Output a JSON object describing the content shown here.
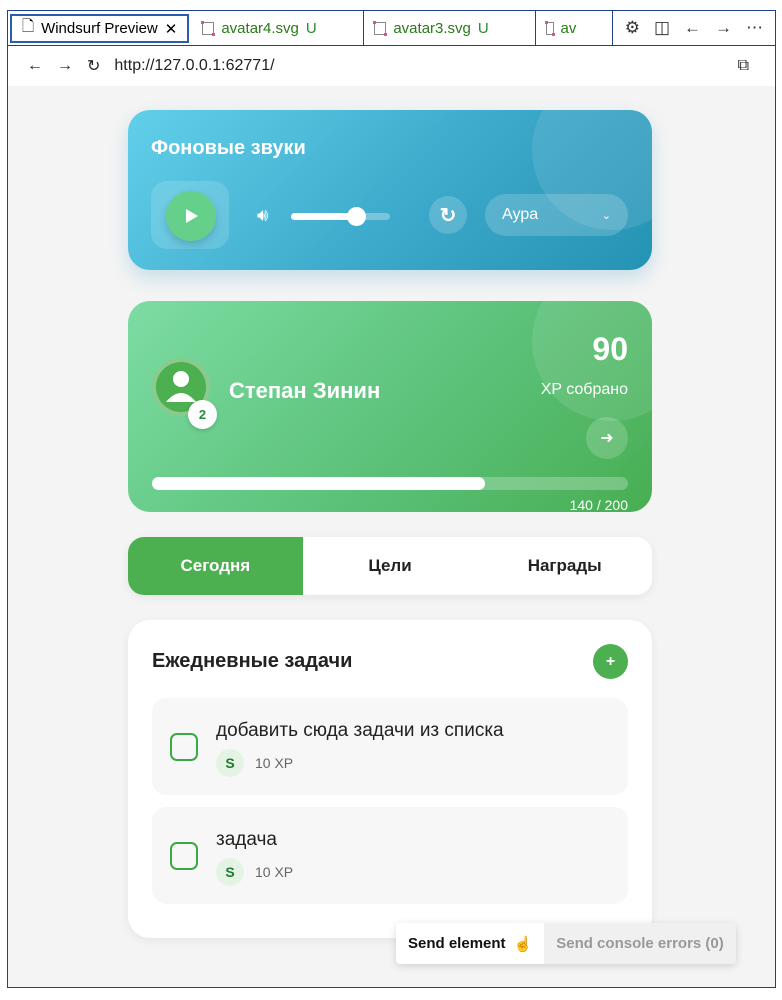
{
  "editor_tabs": [
    {
      "label": "Windsurf Preview",
      "active": true
    },
    {
      "label": "avatar4.svg",
      "status": "U"
    },
    {
      "label": "avatar3.svg",
      "status": "U"
    },
    {
      "label": "av"
    }
  ],
  "address": {
    "url": "http://127.0.0.1:62771/"
  },
  "sound": {
    "title": "Фоновые звуки",
    "volume": 0.66,
    "selected": "Аура"
  },
  "profile": {
    "name": "Степан Зинин",
    "level": "2",
    "xp": "90",
    "xp_label": "XP собрано",
    "progress": 0.7,
    "progress_text": "140 / 200"
  },
  "tabs": [
    "Сегодня",
    "Цели",
    "Награды"
  ],
  "tasks": {
    "title": "Ежедневные задачи",
    "add": "+",
    "items": [
      {
        "title": "добавить сюда задачи из списка",
        "badge": "S",
        "xp": "10 XP"
      },
      {
        "title": "задача",
        "badge": "S",
        "xp": "10 XP"
      }
    ]
  },
  "send": {
    "element": "Send element",
    "console": "Send console errors (0)"
  },
  "colors": {
    "accent": "#4caf50",
    "sound": "#3aa6c8"
  }
}
